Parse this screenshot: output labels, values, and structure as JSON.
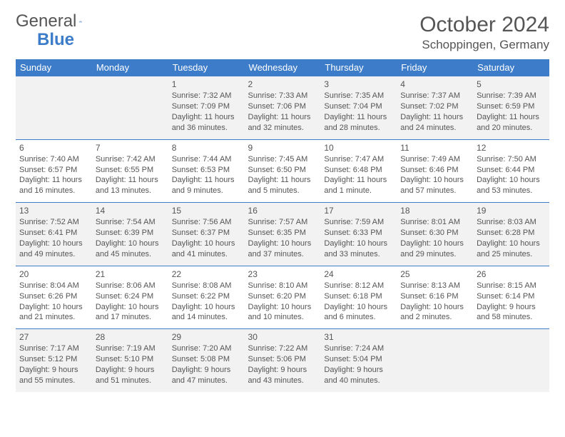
{
  "brand": {
    "part1": "General",
    "part2": "Blue"
  },
  "title": "October 2024",
  "location": "Schoppingen, Germany",
  "colors": {
    "header_bg": "#3d7cc9",
    "header_text": "#ffffff",
    "cell_border": "#3d7cc9",
    "shaded_bg": "#f2f2f2",
    "text": "#555555",
    "page_bg": "#ffffff"
  },
  "day_headers": [
    "Sunday",
    "Monday",
    "Tuesday",
    "Wednesday",
    "Thursday",
    "Friday",
    "Saturday"
  ],
  "weeks": [
    [
      {
        "day": "",
        "sunrise": "",
        "sunset": "",
        "daylight1": "",
        "daylight2": ""
      },
      {
        "day": "",
        "sunrise": "",
        "sunset": "",
        "daylight1": "",
        "daylight2": ""
      },
      {
        "day": "1",
        "sunrise": "Sunrise: 7:32 AM",
        "sunset": "Sunset: 7:09 PM",
        "daylight1": "Daylight: 11 hours",
        "daylight2": "and 36 minutes."
      },
      {
        "day": "2",
        "sunrise": "Sunrise: 7:33 AM",
        "sunset": "Sunset: 7:06 PM",
        "daylight1": "Daylight: 11 hours",
        "daylight2": "and 32 minutes."
      },
      {
        "day": "3",
        "sunrise": "Sunrise: 7:35 AM",
        "sunset": "Sunset: 7:04 PM",
        "daylight1": "Daylight: 11 hours",
        "daylight2": "and 28 minutes."
      },
      {
        "day": "4",
        "sunrise": "Sunrise: 7:37 AM",
        "sunset": "Sunset: 7:02 PM",
        "daylight1": "Daylight: 11 hours",
        "daylight2": "and 24 minutes."
      },
      {
        "day": "5",
        "sunrise": "Sunrise: 7:39 AM",
        "sunset": "Sunset: 6:59 PM",
        "daylight1": "Daylight: 11 hours",
        "daylight2": "and 20 minutes."
      }
    ],
    [
      {
        "day": "6",
        "sunrise": "Sunrise: 7:40 AM",
        "sunset": "Sunset: 6:57 PM",
        "daylight1": "Daylight: 11 hours",
        "daylight2": "and 16 minutes."
      },
      {
        "day": "7",
        "sunrise": "Sunrise: 7:42 AM",
        "sunset": "Sunset: 6:55 PM",
        "daylight1": "Daylight: 11 hours",
        "daylight2": "and 13 minutes."
      },
      {
        "day": "8",
        "sunrise": "Sunrise: 7:44 AM",
        "sunset": "Sunset: 6:53 PM",
        "daylight1": "Daylight: 11 hours",
        "daylight2": "and 9 minutes."
      },
      {
        "day": "9",
        "sunrise": "Sunrise: 7:45 AM",
        "sunset": "Sunset: 6:50 PM",
        "daylight1": "Daylight: 11 hours",
        "daylight2": "and 5 minutes."
      },
      {
        "day": "10",
        "sunrise": "Sunrise: 7:47 AM",
        "sunset": "Sunset: 6:48 PM",
        "daylight1": "Daylight: 11 hours",
        "daylight2": "and 1 minute."
      },
      {
        "day": "11",
        "sunrise": "Sunrise: 7:49 AM",
        "sunset": "Sunset: 6:46 PM",
        "daylight1": "Daylight: 10 hours",
        "daylight2": "and 57 minutes."
      },
      {
        "day": "12",
        "sunrise": "Sunrise: 7:50 AM",
        "sunset": "Sunset: 6:44 PM",
        "daylight1": "Daylight: 10 hours",
        "daylight2": "and 53 minutes."
      }
    ],
    [
      {
        "day": "13",
        "sunrise": "Sunrise: 7:52 AM",
        "sunset": "Sunset: 6:41 PM",
        "daylight1": "Daylight: 10 hours",
        "daylight2": "and 49 minutes."
      },
      {
        "day": "14",
        "sunrise": "Sunrise: 7:54 AM",
        "sunset": "Sunset: 6:39 PM",
        "daylight1": "Daylight: 10 hours",
        "daylight2": "and 45 minutes."
      },
      {
        "day": "15",
        "sunrise": "Sunrise: 7:56 AM",
        "sunset": "Sunset: 6:37 PM",
        "daylight1": "Daylight: 10 hours",
        "daylight2": "and 41 minutes."
      },
      {
        "day": "16",
        "sunrise": "Sunrise: 7:57 AM",
        "sunset": "Sunset: 6:35 PM",
        "daylight1": "Daylight: 10 hours",
        "daylight2": "and 37 minutes."
      },
      {
        "day": "17",
        "sunrise": "Sunrise: 7:59 AM",
        "sunset": "Sunset: 6:33 PM",
        "daylight1": "Daylight: 10 hours",
        "daylight2": "and 33 minutes."
      },
      {
        "day": "18",
        "sunrise": "Sunrise: 8:01 AM",
        "sunset": "Sunset: 6:30 PM",
        "daylight1": "Daylight: 10 hours",
        "daylight2": "and 29 minutes."
      },
      {
        "day": "19",
        "sunrise": "Sunrise: 8:03 AM",
        "sunset": "Sunset: 6:28 PM",
        "daylight1": "Daylight: 10 hours",
        "daylight2": "and 25 minutes."
      }
    ],
    [
      {
        "day": "20",
        "sunrise": "Sunrise: 8:04 AM",
        "sunset": "Sunset: 6:26 PM",
        "daylight1": "Daylight: 10 hours",
        "daylight2": "and 21 minutes."
      },
      {
        "day": "21",
        "sunrise": "Sunrise: 8:06 AM",
        "sunset": "Sunset: 6:24 PM",
        "daylight1": "Daylight: 10 hours",
        "daylight2": "and 17 minutes."
      },
      {
        "day": "22",
        "sunrise": "Sunrise: 8:08 AM",
        "sunset": "Sunset: 6:22 PM",
        "daylight1": "Daylight: 10 hours",
        "daylight2": "and 14 minutes."
      },
      {
        "day": "23",
        "sunrise": "Sunrise: 8:10 AM",
        "sunset": "Sunset: 6:20 PM",
        "daylight1": "Daylight: 10 hours",
        "daylight2": "and 10 minutes."
      },
      {
        "day": "24",
        "sunrise": "Sunrise: 8:12 AM",
        "sunset": "Sunset: 6:18 PM",
        "daylight1": "Daylight: 10 hours",
        "daylight2": "and 6 minutes."
      },
      {
        "day": "25",
        "sunrise": "Sunrise: 8:13 AM",
        "sunset": "Sunset: 6:16 PM",
        "daylight1": "Daylight: 10 hours",
        "daylight2": "and 2 minutes."
      },
      {
        "day": "26",
        "sunrise": "Sunrise: 8:15 AM",
        "sunset": "Sunset: 6:14 PM",
        "daylight1": "Daylight: 9 hours",
        "daylight2": "and 58 minutes."
      }
    ],
    [
      {
        "day": "27",
        "sunrise": "Sunrise: 7:17 AM",
        "sunset": "Sunset: 5:12 PM",
        "daylight1": "Daylight: 9 hours",
        "daylight2": "and 55 minutes."
      },
      {
        "day": "28",
        "sunrise": "Sunrise: 7:19 AM",
        "sunset": "Sunset: 5:10 PM",
        "daylight1": "Daylight: 9 hours",
        "daylight2": "and 51 minutes."
      },
      {
        "day": "29",
        "sunrise": "Sunrise: 7:20 AM",
        "sunset": "Sunset: 5:08 PM",
        "daylight1": "Daylight: 9 hours",
        "daylight2": "and 47 minutes."
      },
      {
        "day": "30",
        "sunrise": "Sunrise: 7:22 AM",
        "sunset": "Sunset: 5:06 PM",
        "daylight1": "Daylight: 9 hours",
        "daylight2": "and 43 minutes."
      },
      {
        "day": "31",
        "sunrise": "Sunrise: 7:24 AM",
        "sunset": "Sunset: 5:04 PM",
        "daylight1": "Daylight: 9 hours",
        "daylight2": "and 40 minutes."
      },
      {
        "day": "",
        "sunrise": "",
        "sunset": "",
        "daylight1": "",
        "daylight2": ""
      },
      {
        "day": "",
        "sunrise": "",
        "sunset": "",
        "daylight1": "",
        "daylight2": ""
      }
    ]
  ]
}
